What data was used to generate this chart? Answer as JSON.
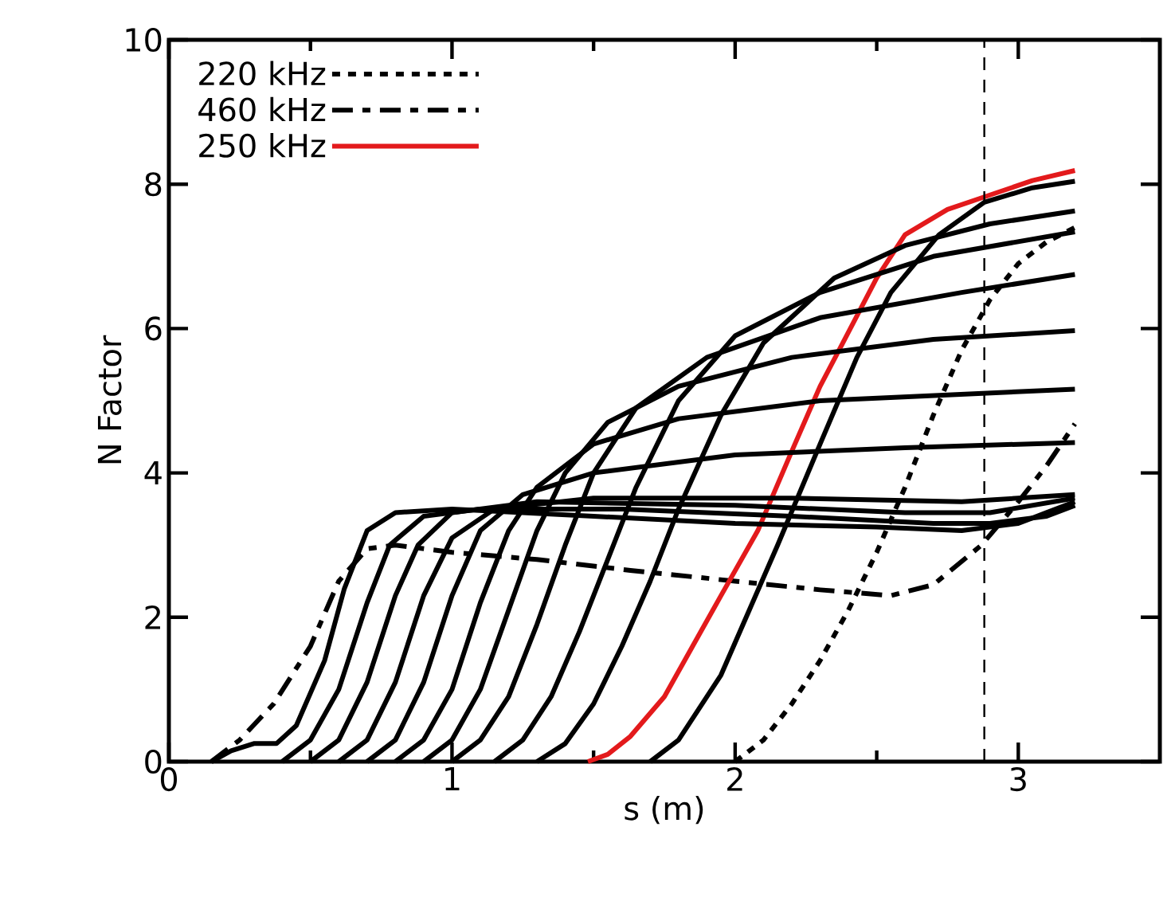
{
  "chart_data": {
    "type": "line",
    "xlabel": "s (m)",
    "ylabel": "N Factor",
    "xlim": [
      0,
      3.5
    ],
    "ylim": [
      0,
      10
    ],
    "xticks": [
      0,
      1,
      2,
      3
    ],
    "yticks": [
      0,
      2,
      4,
      6,
      8,
      10
    ],
    "legend": "top left",
    "ref_lines": [
      {
        "axis": "x",
        "value": 2.88,
        "color": "#000000",
        "line_style": "dashed"
      }
    ],
    "series": [
      {
        "name": "220 kHz",
        "color": "#000000",
        "line_style": "dotted",
        "x": [
          2.0,
          2.1,
          2.2,
          2.3,
          2.4,
          2.5,
          2.6,
          2.7,
          2.8,
          2.9,
          3.0,
          3.1,
          3.2
        ],
        "values": [
          0,
          0.3,
          0.8,
          1.4,
          2.1,
          2.9,
          3.8,
          4.8,
          5.7,
          6.4,
          6.9,
          7.2,
          7.4
        ]
      },
      {
        "name": "460 kHz",
        "color": "#000000",
        "line_style": "dashdot",
        "x": [
          0.15,
          0.25,
          0.37,
          0.5,
          0.6,
          0.7,
          0.8,
          1.0,
          1.3,
          1.63,
          2.0,
          2.3,
          2.55,
          2.7,
          2.87,
          3.0,
          3.1,
          3.2
        ],
        "values": [
          0,
          0.3,
          0.8,
          1.6,
          2.5,
          2.95,
          3.0,
          2.9,
          2.8,
          2.65,
          2.5,
          2.38,
          2.3,
          2.45,
          3.0,
          3.6,
          4.1,
          4.68
        ]
      },
      {
        "name": "250 kHz",
        "color": "#e31a1c",
        "line_style": "solid",
        "x": [
          1.48,
          1.55,
          1.63,
          1.75,
          1.85,
          1.95,
          2.08,
          2.2,
          2.3,
          2.38,
          2.5,
          2.6,
          2.75,
          2.9,
          3.05,
          3.2
        ],
        "values": [
          0,
          0.1,
          0.35,
          0.9,
          1.6,
          2.3,
          3.2,
          4.3,
          5.2,
          5.8,
          6.7,
          7.3,
          7.65,
          7.85,
          8.05,
          8.19
        ]
      },
      {
        "color": "#000000",
        "line_style": "solid",
        "x": [
          0.15,
          0.22,
          0.3,
          0.38,
          0.45,
          0.55,
          0.62,
          0.7,
          0.8,
          1.0,
          1.5,
          2.0,
          2.5,
          2.8,
          3.0,
          3.1,
          3.2
        ],
        "values": [
          0,
          0.15,
          0.25,
          0.25,
          0.5,
          1.4,
          2.4,
          3.2,
          3.45,
          3.5,
          3.4,
          3.3,
          3.25,
          3.2,
          3.3,
          3.45,
          3.6
        ]
      },
      {
        "color": "#000000",
        "line_style": "solid",
        "x": [
          0.4,
          0.5,
          0.6,
          0.7,
          0.78,
          0.9,
          1.1,
          1.6,
          2.2,
          2.7,
          2.9,
          3.1,
          3.2
        ],
        "values": [
          0,
          0.3,
          1.0,
          2.2,
          3.0,
          3.4,
          3.5,
          3.5,
          3.4,
          3.3,
          3.3,
          3.4,
          3.55
        ]
      },
      {
        "color": "#000000",
        "line_style": "solid",
        "x": [
          0.5,
          0.6,
          0.7,
          0.8,
          0.88,
          1.0,
          1.3,
          2.0,
          2.6,
          2.9,
          3.2
        ],
        "values": [
          0,
          0.3,
          1.1,
          2.3,
          3.0,
          3.45,
          3.6,
          3.55,
          3.45,
          3.45,
          3.65
        ]
      },
      {
        "color": "#000000",
        "line_style": "solid",
        "x": [
          0.6,
          0.7,
          0.8,
          0.9,
          1.0,
          1.15,
          1.5,
          2.2,
          2.8,
          3.2
        ],
        "values": [
          0,
          0.3,
          1.1,
          2.3,
          3.1,
          3.5,
          3.65,
          3.65,
          3.6,
          3.7
        ]
      },
      {
        "color": "#000000",
        "line_style": "solid",
        "x": [
          0.7,
          0.8,
          0.9,
          1.0,
          1.1,
          1.25,
          1.5,
          2.0,
          2.6,
          3.2
        ],
        "values": [
          0,
          0.3,
          1.1,
          2.3,
          3.2,
          3.7,
          4.0,
          4.25,
          4.35,
          4.42
        ]
      },
      {
        "color": "#000000",
        "line_style": "solid",
        "x": [
          0.8,
          0.9,
          1.0,
          1.1,
          1.2,
          1.3,
          1.5,
          1.8,
          2.3,
          3.2
        ],
        "values": [
          0,
          0.3,
          1.0,
          2.2,
          3.2,
          3.8,
          4.4,
          4.75,
          5.0,
          5.16
        ]
      },
      {
        "color": "#000000",
        "line_style": "solid",
        "x": [
          0.9,
          1.0,
          1.1,
          1.2,
          1.3,
          1.4,
          1.55,
          1.8,
          2.2,
          2.7,
          3.2
        ],
        "values": [
          0,
          0.3,
          1.0,
          2.1,
          3.2,
          4.0,
          4.7,
          5.2,
          5.6,
          5.85,
          5.97
        ]
      },
      {
        "color": "#000000",
        "line_style": "solid",
        "x": [
          1.0,
          1.1,
          1.2,
          1.3,
          1.4,
          1.5,
          1.65,
          1.9,
          2.3,
          2.8,
          3.2
        ],
        "values": [
          0,
          0.3,
          0.9,
          1.9,
          3.0,
          4.0,
          4.9,
          5.6,
          6.15,
          6.5,
          6.75
        ]
      },
      {
        "color": "#000000",
        "line_style": "solid",
        "x": [
          1.15,
          1.25,
          1.35,
          1.45,
          1.55,
          1.65,
          1.8,
          2.0,
          2.3,
          2.7,
          3.2
        ],
        "values": [
          0,
          0.3,
          0.9,
          1.8,
          2.8,
          3.8,
          5.0,
          5.9,
          6.5,
          7.0,
          7.34
        ]
      },
      {
        "color": "#000000",
        "line_style": "solid",
        "x": [
          1.3,
          1.4,
          1.5,
          1.6,
          1.7,
          1.8,
          1.95,
          2.1,
          2.35,
          2.6,
          2.9,
          3.2
        ],
        "values": [
          0,
          0.25,
          0.8,
          1.6,
          2.5,
          3.5,
          4.8,
          5.8,
          6.7,
          7.15,
          7.45,
          7.63
        ]
      },
      {
        "color": "#000000",
        "line_style": "solid",
        "x": [
          1.7,
          1.8,
          1.95,
          2.05,
          2.15,
          2.3,
          2.43,
          2.55,
          2.72,
          2.88,
          3.05,
          3.2
        ],
        "values": [
          0,
          0.3,
          1.2,
          2.1,
          3.0,
          4.4,
          5.6,
          6.5,
          7.3,
          7.75,
          7.95,
          8.04
        ]
      }
    ]
  }
}
